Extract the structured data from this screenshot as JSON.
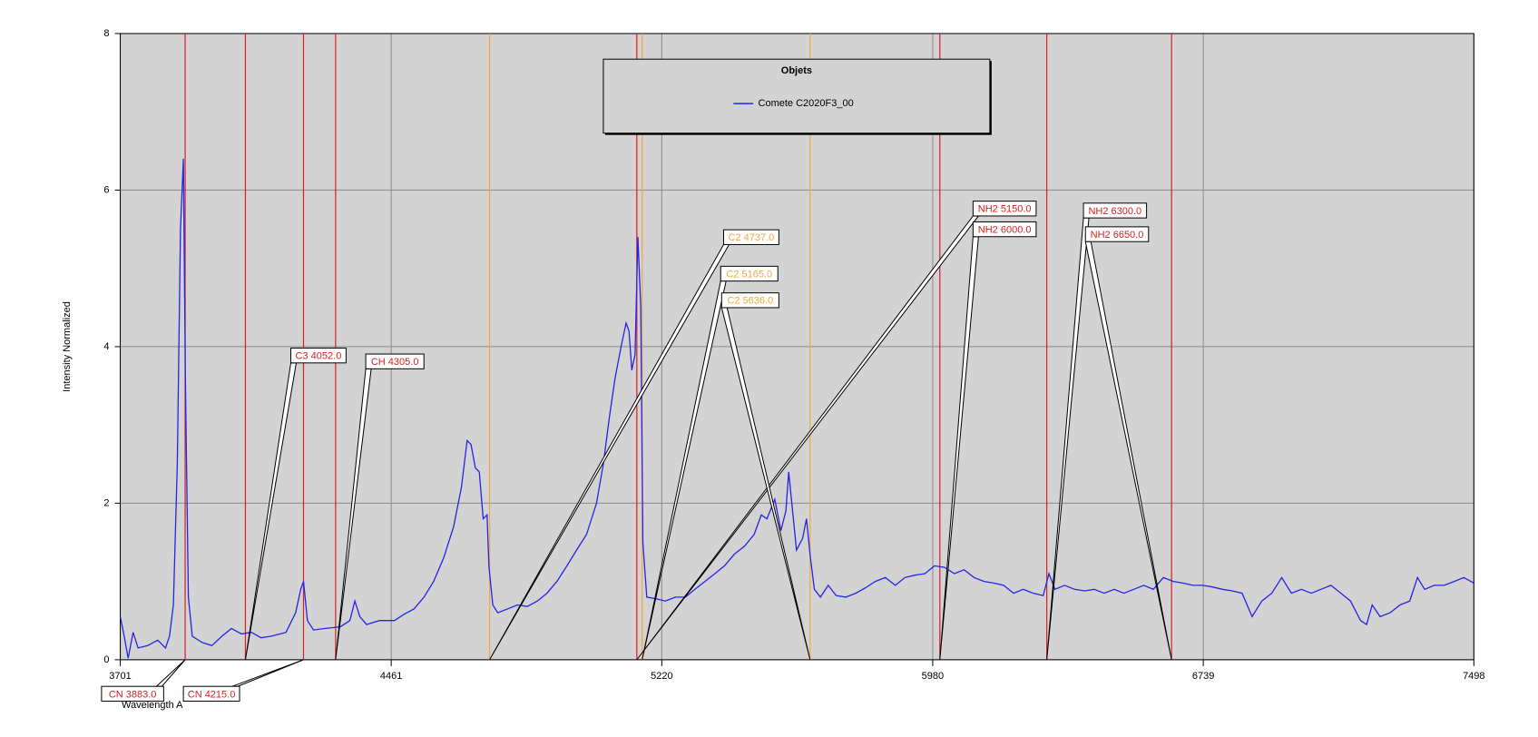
{
  "chart_data": {
    "type": "line",
    "x_label": "Wavelength A",
    "y_label": "Intensity Normalized",
    "legend_title": "Objets",
    "xlim": [
      3701,
      7498
    ],
    "ylim": [
      0,
      8
    ],
    "xticks": [
      3701,
      4461,
      5220,
      5980,
      6739,
      7498
    ],
    "yticks": [
      0,
      2,
      4,
      6,
      8
    ],
    "grid": true,
    "plot_background": "#d3d3d3",
    "x": [
      3701,
      3712,
      3723,
      3737,
      3751,
      3778,
      3806,
      3828,
      3839,
      3850,
      3861,
      3870,
      3878,
      3884,
      3892,
      3903,
      3931,
      3958,
      3986,
      4013,
      4041,
      4069,
      4096,
      4124,
      4166,
      4193,
      4207,
      4215,
      4226,
      4243,
      4276,
      4318,
      4345,
      4359,
      4373,
      4392,
      4428,
      4470,
      4497,
      4525,
      4553,
      4580,
      4608,
      4636,
      4658,
      4674,
      4685,
      4697,
      4708,
      4719,
      4730,
      4735,
      4746,
      4760,
      4788,
      4815,
      4843,
      4871,
      4898,
      4926,
      4954,
      4981,
      5009,
      5037,
      5056,
      5073,
      5089,
      5106,
      5120,
      5128,
      5136,
      5145,
      5153,
      5161,
      5167,
      5178,
      5203,
      5230,
      5258,
      5286,
      5313,
      5341,
      5369,
      5396,
      5424,
      5452,
      5479,
      5499,
      5515,
      5537,
      5554,
      5568,
      5576,
      5587,
      5598,
      5615,
      5626,
      5637,
      5648,
      5665,
      5687,
      5709,
      5736,
      5764,
      5792,
      5819,
      5847,
      5875,
      5902,
      5930,
      5958,
      5985,
      6013,
      6041,
      6068,
      6096,
      6124,
      6151,
      6179,
      6207,
      6234,
      6262,
      6290,
      6306,
      6323,
      6350,
      6378,
      6406,
      6433,
      6461,
      6489,
      6516,
      6544,
      6572,
      6599,
      6627,
      6655,
      6682,
      6710,
      6737,
      6765,
      6793,
      6820,
      6848,
      6876,
      6903,
      6931,
      6959,
      6986,
      7014,
      7042,
      7069,
      7097,
      7125,
      7152,
      7180,
      7197,
      7213,
      7235,
      7263,
      7291,
      7318,
      7340,
      7360,
      7387,
      7415,
      7443,
      7470,
      7498
    ],
    "series": [
      {
        "name": "Comete C2020F3_00",
        "color": "#2424e8",
        "values": [
          0.55,
          0.3,
          0.02,
          0.35,
          0.15,
          0.18,
          0.25,
          0.15,
          0.3,
          0.7,
          2.5,
          5.5,
          6.4,
          3.5,
          0.8,
          0.3,
          0.22,
          0.18,
          0.3,
          0.4,
          0.33,
          0.35,
          0.28,
          0.3,
          0.35,
          0.6,
          0.9,
          1.0,
          0.5,
          0.38,
          0.4,
          0.42,
          0.5,
          0.75,
          0.55,
          0.45,
          0.5,
          0.5,
          0.58,
          0.65,
          0.8,
          1.0,
          1.3,
          1.7,
          2.2,
          2.8,
          2.75,
          2.45,
          2.4,
          1.8,
          1.85,
          1.2,
          0.7,
          0.6,
          0.65,
          0.7,
          0.68,
          0.75,
          0.85,
          1.0,
          1.2,
          1.4,
          1.6,
          2.0,
          2.5,
          3.1,
          3.6,
          4.0,
          4.3,
          4.2,
          3.7,
          3.9,
          5.4,
          4.5,
          1.5,
          0.8,
          0.78,
          0.75,
          0.8,
          0.8,
          0.9,
          1.0,
          1.1,
          1.2,
          1.35,
          1.45,
          1.6,
          1.85,
          1.8,
          2.05,
          1.65,
          1.9,
          2.4,
          1.9,
          1.4,
          1.55,
          1.8,
          1.3,
          0.9,
          0.8,
          0.95,
          0.82,
          0.8,
          0.85,
          0.92,
          1.0,
          1.05,
          0.95,
          1.05,
          1.08,
          1.1,
          1.2,
          1.18,
          1.1,
          1.15,
          1.05,
          1.0,
          0.98,
          0.95,
          0.85,
          0.9,
          0.85,
          0.82,
          1.1,
          0.9,
          0.95,
          0.9,
          0.88,
          0.9,
          0.85,
          0.9,
          0.85,
          0.9,
          0.95,
          0.9,
          1.05,
          1.0,
          0.98,
          0.95,
          0.95,
          0.93,
          0.9,
          0.88,
          0.85,
          0.55,
          0.75,
          0.85,
          1.05,
          0.85,
          0.9,
          0.85,
          0.9,
          0.95,
          0.85,
          0.75,
          0.5,
          0.45,
          0.7,
          0.55,
          0.6,
          0.7,
          0.75,
          1.05,
          0.9,
          0.95,
          0.95,
          1.0,
          1.05,
          0.98
        ]
      }
    ],
    "markers": [
      {
        "label": "CN 3883.0",
        "x": 3883,
        "color": "#d81e1e"
      },
      {
        "label": "C3 4052.0",
        "x": 4052,
        "color": "#d81e1e"
      },
      {
        "label": "CN 4215.0",
        "x": 4215,
        "color": "#d81e1e"
      },
      {
        "label": "CH 4305.0",
        "x": 4305,
        "color": "#d81e1e"
      },
      {
        "label": "C2 4737.0",
        "x": 4737,
        "color": "#f4a640"
      },
      {
        "label": "NH2 5150.0",
        "x": 5150,
        "color": "#d81e1e"
      },
      {
        "label": "C2 5165.0",
        "x": 5165,
        "color": "#f4a640"
      },
      {
        "label": "C2 5636.0",
        "x": 5636,
        "color": "#f4a640"
      },
      {
        "label": "NH2 6000.0",
        "x": 6000,
        "color": "#d81e1e"
      },
      {
        "label": "NH2 6300.0",
        "x": 6300,
        "color": "#d81e1e"
      },
      {
        "label": "NH2 6650.0",
        "x": 6650,
        "color": "#d81e1e"
      }
    ]
  }
}
